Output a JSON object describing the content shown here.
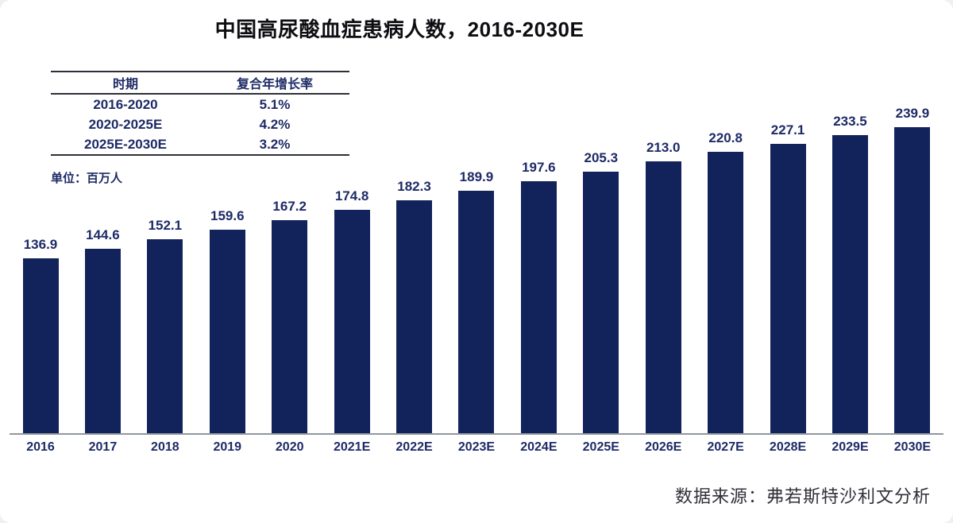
{
  "page": {
    "title": "中国高尿酸血症患病人数，2016-2030E",
    "unit_label": "单位：百万人",
    "source": "数据来源：弗若斯特沙利文分析"
  },
  "cagr_table": {
    "headers": [
      "时期",
      "复合年增长率"
    ],
    "rows": [
      {
        "period": "2016-2020",
        "cagr": "5.1%"
      },
      {
        "period": "2020-2025E",
        "cagr": "4.2%"
      },
      {
        "period": "2025E-2030E",
        "cagr": "3.2%"
      }
    ]
  },
  "chart_data": {
    "type": "bar",
    "title": "中国高尿酸血症患病人数，2016-2030E",
    "categories": [
      "2016",
      "2017",
      "2018",
      "2019",
      "2020",
      "2021E",
      "2022E",
      "2023E",
      "2024E",
      "2025E",
      "2026E",
      "2027E",
      "2028E",
      "2029E",
      "2030E"
    ],
    "values": [
      136.9,
      144.6,
      152.1,
      159.6,
      167.2,
      174.8,
      182.3,
      189.9,
      197.6,
      205.3,
      213.0,
      220.8,
      227.1,
      233.5,
      239.9
    ],
    "unit": "百万人",
    "xlabel": "",
    "ylabel": "",
    "ylim": [
      0,
      240
    ],
    "grid": false,
    "legend": false,
    "value_labels": true
  },
  "theme": {
    "bar_color": "#12235c",
    "navy_text": "#1d2a66",
    "table_line": "#2e3038",
    "axis_line": "#9097a0"
  }
}
